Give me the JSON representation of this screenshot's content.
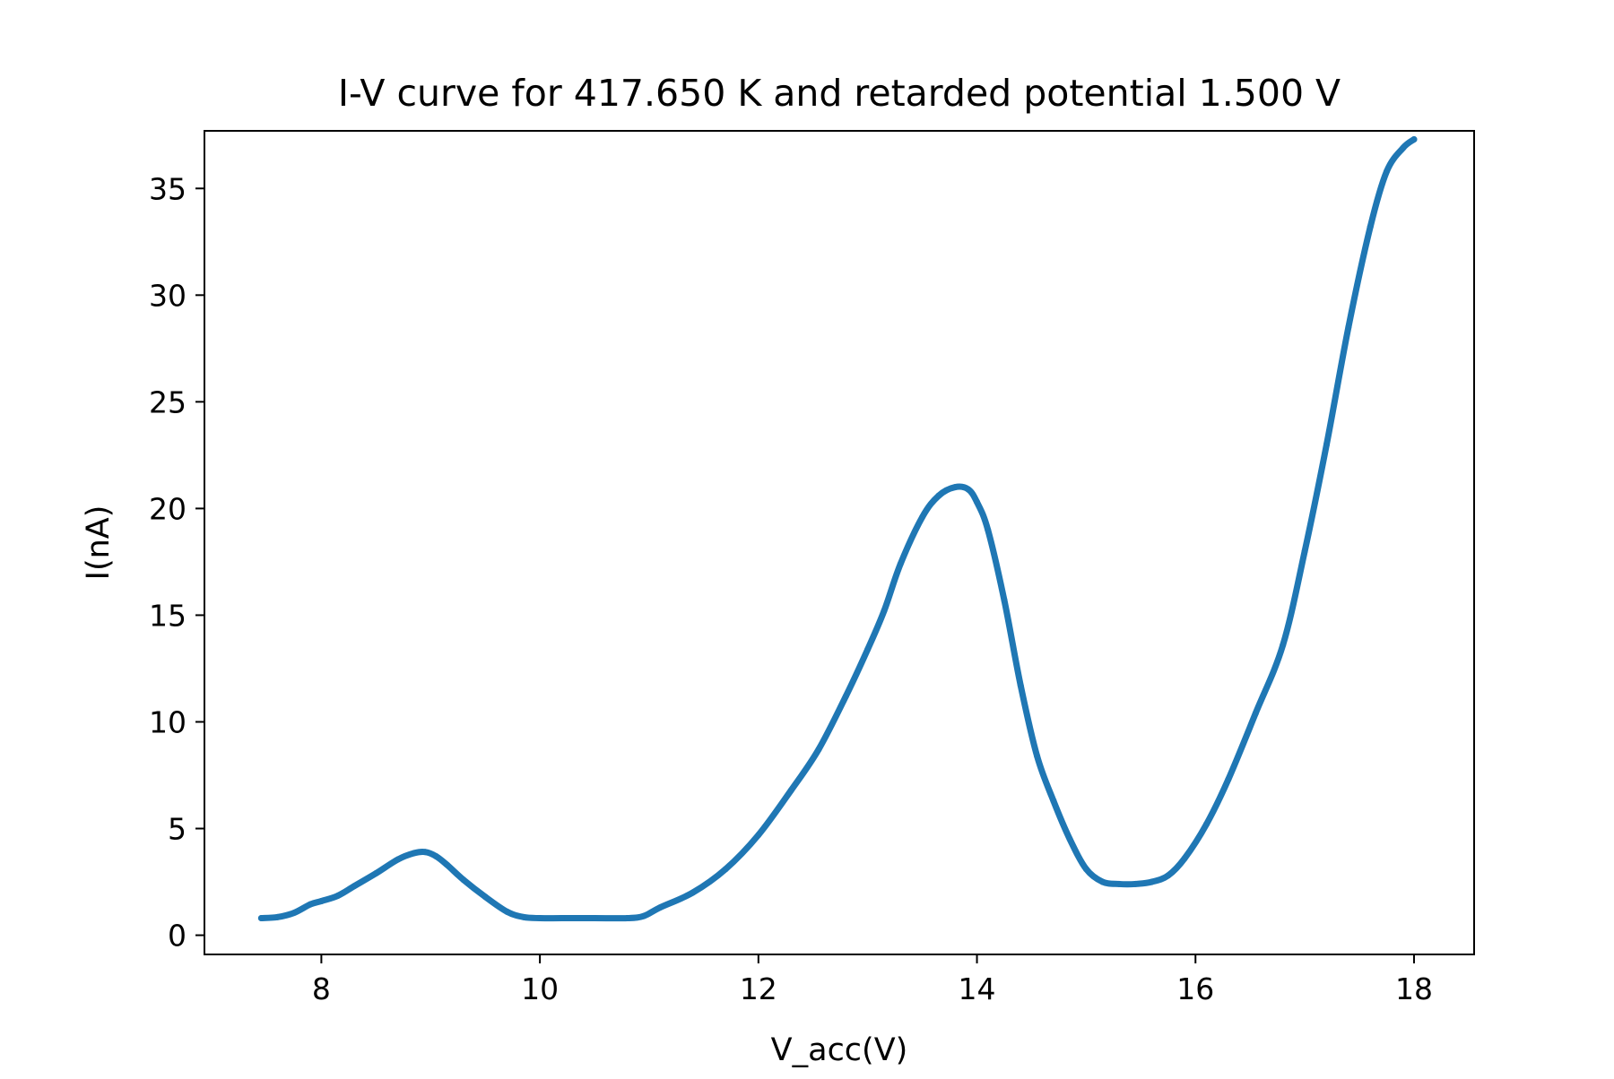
{
  "chart_data": {
    "type": "line",
    "title": "I-V curve for 417.650 K and retarded potential 1.500 V",
    "xlabel": "V_acc(V)",
    "ylabel": "I(nA)",
    "xlim": [
      6.93,
      18.55
    ],
    "ylim": [
      -0.9,
      37.7
    ],
    "x_ticks": [
      8,
      10,
      12,
      14,
      16,
      18
    ],
    "y_ticks": [
      0,
      5,
      10,
      15,
      20,
      25,
      30,
      35
    ],
    "x_tick_labels": [
      "8",
      "10",
      "12",
      14,
      "16",
      "18"
    ],
    "y_tick_labels": [
      "0",
      "5",
      "10",
      "15",
      "20",
      "25",
      "30",
      "35"
    ],
    "grid": false,
    "series": [
      {
        "color": "#1f77b4",
        "x": [
          7.45,
          7.6,
          7.75,
          7.9,
          8.0,
          8.15,
          8.3,
          8.5,
          8.7,
          8.85,
          8.95,
          9.05,
          9.15,
          9.3,
          9.5,
          9.7,
          9.85,
          10.0,
          10.2,
          10.5,
          10.8,
          10.95,
          11.1,
          11.4,
          11.7,
          12.0,
          12.3,
          12.55,
          12.8,
          13.0,
          13.15,
          13.3,
          13.5,
          13.65,
          13.8,
          13.92,
          14.0,
          14.1,
          14.25,
          14.4,
          14.55,
          14.7,
          14.85,
          15.0,
          15.15,
          15.3,
          15.45,
          15.6,
          15.75,
          15.9,
          16.1,
          16.3,
          16.55,
          16.8,
          17.0,
          17.2,
          17.4,
          17.6,
          17.75,
          17.9,
          18.0
        ],
        "y": [
          0.8,
          0.85,
          1.05,
          1.45,
          1.6,
          1.85,
          2.3,
          2.9,
          3.55,
          3.85,
          3.9,
          3.7,
          3.3,
          2.6,
          1.8,
          1.1,
          0.85,
          0.8,
          0.8,
          0.8,
          0.8,
          0.9,
          1.3,
          2.0,
          3.1,
          4.7,
          6.8,
          8.7,
          11.2,
          13.4,
          15.2,
          17.4,
          19.6,
          20.6,
          21.0,
          20.9,
          20.3,
          19.0,
          15.7,
          11.7,
          8.4,
          6.3,
          4.5,
          3.1,
          2.5,
          2.4,
          2.4,
          2.5,
          2.8,
          3.6,
          5.2,
          7.3,
          10.4,
          13.6,
          18.0,
          23.0,
          28.5,
          33.2,
          35.8,
          36.9,
          37.3
        ]
      }
    ]
  }
}
